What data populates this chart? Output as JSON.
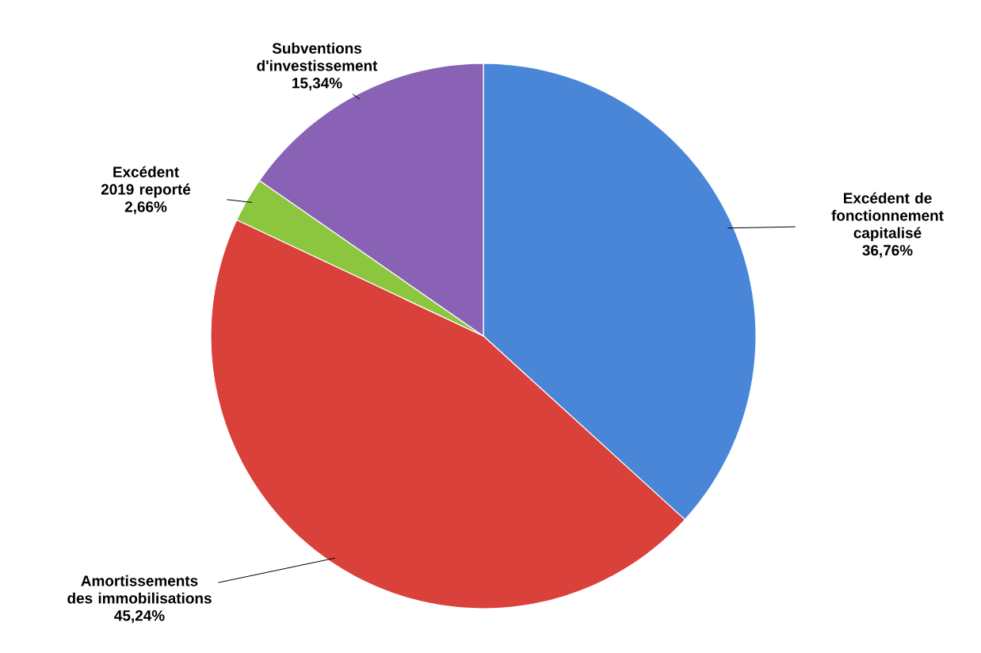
{
  "chart_data": {
    "type": "pie",
    "categories": [
      "Excédent de fonctionnement capitalisé",
      "Amortissements des immobilisations",
      "Excédent 2019 reporté",
      "Subventions d'investissement"
    ],
    "values": [
      36.76,
      45.24,
      2.66,
      15.34
    ],
    "value_labels": [
      "36,76%",
      "45,24%",
      "2,66%",
      "15,34%"
    ],
    "colors": [
      "#4a86d8",
      "#d9413a",
      "#8cc63f",
      "#8a62b5"
    ]
  }
}
